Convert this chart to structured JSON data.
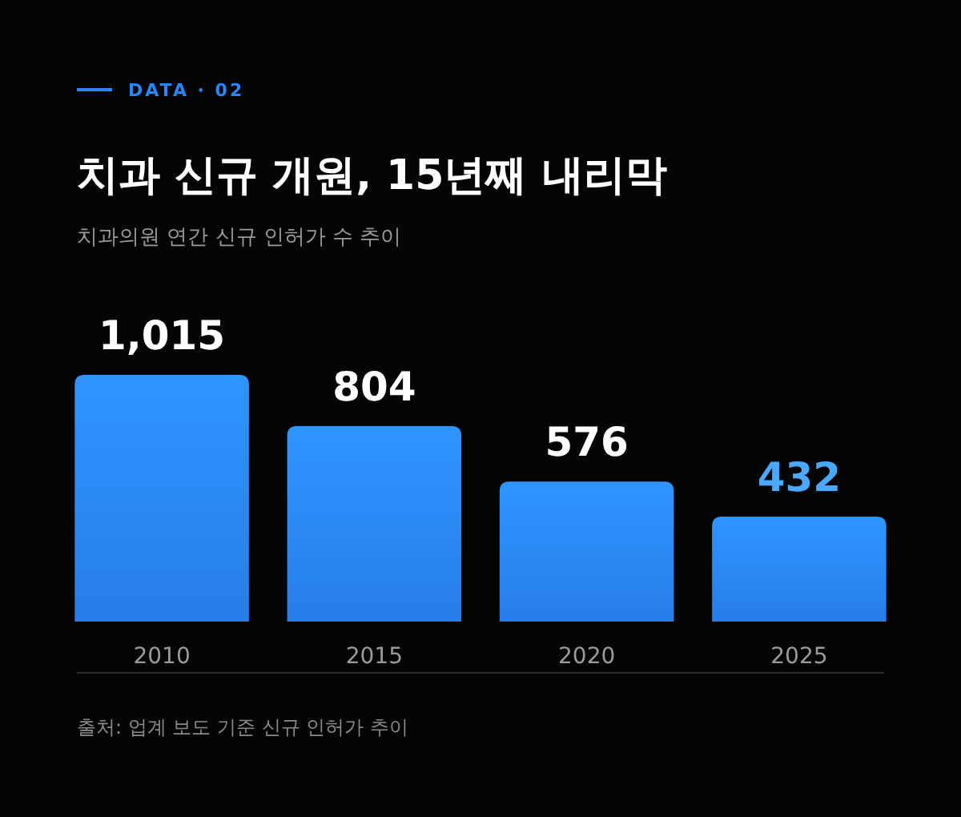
{
  "chart_data": {
    "type": "bar",
    "title": "치과 신규 개원, 15년째 내리막",
    "subtitle": "치과의원 연간 신규 인허가 수 추이",
    "annotations": [
      "DATA · 02",
      "출처: 업계 보도 기준 신규 인허가 추이"
    ],
    "categories": [
      "2010",
      "2015",
      "2020",
      "2025"
    ],
    "values": [
      1015,
      804,
      576,
      432
    ],
    "value_labels": [
      "1,015",
      "804",
      "576",
      "432"
    ],
    "color": "#2a86fb",
    "grid": false
  }
}
